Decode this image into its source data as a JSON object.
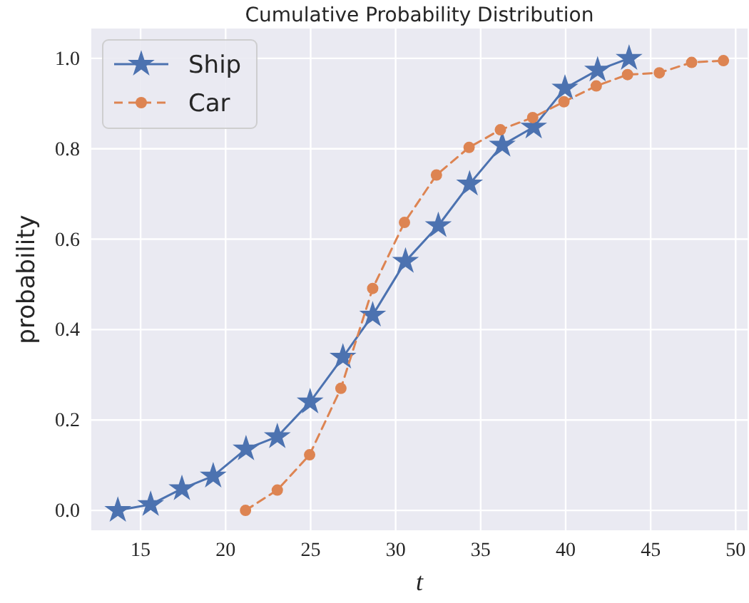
{
  "chart_data": {
    "type": "line",
    "title": "Cumulative Probability Distribution",
    "xlabel": "t",
    "ylabel": "probability",
    "xlim": [
      12.1,
      50.7
    ],
    "ylim": [
      -0.044,
      1.066
    ],
    "xticks": [
      15,
      20,
      25,
      30,
      35,
      40,
      45,
      50
    ],
    "yticks": [
      {
        "value": 0,
        "label": "0.0"
      },
      {
        "value": 0.2,
        "label": "0.2"
      },
      {
        "value": 0.4,
        "label": "0.4"
      },
      {
        "value": 0.6,
        "label": "0.6"
      },
      {
        "value": 0.8,
        "label": "0.8"
      },
      {
        "value": 1,
        "label": "1.0"
      }
    ],
    "grid": true,
    "legend": "top left",
    "series": [
      {
        "name": "Ship",
        "color": "#4c72b0",
        "marker": "star",
        "line_style": "solid",
        "x": [
          13.66,
          15.59,
          17.43,
          19.27,
          21.2,
          23.04,
          24.97,
          26.9,
          28.65,
          30.58,
          32.51,
          34.35,
          36.27,
          38.12,
          39.96,
          41.88,
          43.73
        ],
        "values": [
          0.0,
          0.013,
          0.048,
          0.076,
          0.136,
          0.163,
          0.24,
          0.339,
          0.432,
          0.551,
          0.63,
          0.722,
          0.808,
          0.848,
          0.934,
          0.974,
          1.0
        ]
      },
      {
        "name": "Car",
        "color": "#dd8452",
        "marker": "circle",
        "line_style": "dashed",
        "x": [
          21.17,
          23.04,
          24.94,
          26.78,
          28.65,
          30.52,
          32.4,
          34.32,
          36.16,
          38.06,
          39.9,
          41.8,
          43.64,
          45.51,
          47.41,
          49.28
        ],
        "values": [
          0.0,
          0.045,
          0.123,
          0.27,
          0.491,
          0.637,
          0.742,
          0.803,
          0.842,
          0.869,
          0.904,
          0.939,
          0.964,
          0.968,
          0.991,
          0.995
        ]
      }
    ]
  }
}
